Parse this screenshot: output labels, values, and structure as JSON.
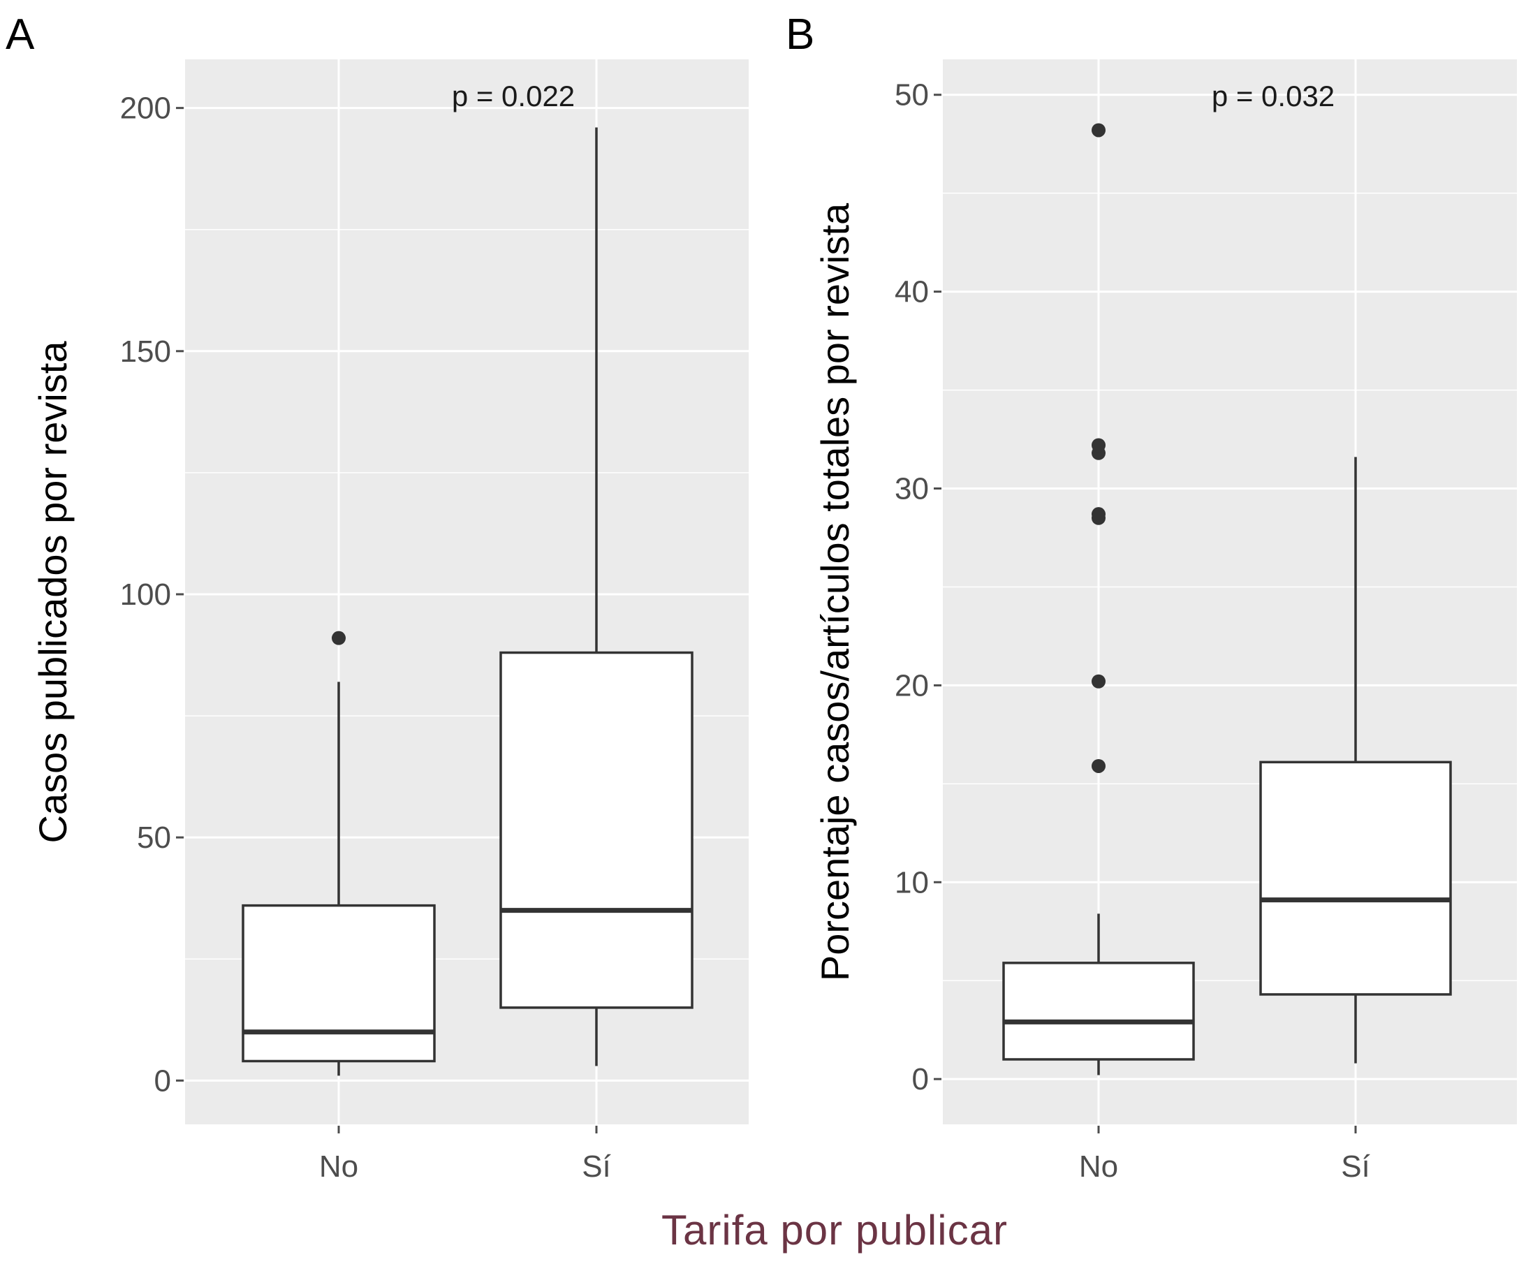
{
  "xlabel": "Tarifa por publicar",
  "colors": {
    "panel_bg": "#ebebeb",
    "grid": "#ffffff",
    "box_stroke": "#333333",
    "text": "#4d4d4d",
    "xlabel": "#6b3444"
  },
  "chart_data": [
    {
      "type": "box",
      "panel_label": "A",
      "ylabel": "Casos publicados por revista",
      "annotation": "p = 0.022",
      "categories": [
        "No",
        "Sí"
      ],
      "ylim": [
        -9,
        210
      ],
      "yticks": [
        0,
        50,
        100,
        150,
        200
      ],
      "ytick_labels": [
        "0",
        "50",
        "100",
        "150",
        "200"
      ],
      "boxes": [
        {
          "category": "No",
          "whisker_low": 1,
          "q1": 4,
          "median": 10,
          "q3": 36,
          "whisker_high": 82,
          "outliers": [
            91
          ]
        },
        {
          "category": "Sí",
          "whisker_low": 3,
          "q1": 15,
          "median": 35,
          "q3": 88,
          "whisker_high": 196,
          "outliers": []
        }
      ],
      "grid": true
    },
    {
      "type": "box",
      "panel_label": "B",
      "ylabel": "Porcentaje casos/artículos totales por revista",
      "annotation": "p = 0.032",
      "categories": [
        "No",
        "Sí"
      ],
      "ylim": [
        -2.3,
        51.8
      ],
      "yticks": [
        0,
        10,
        20,
        30,
        40,
        50
      ],
      "ytick_labels": [
        "0",
        "10",
        "20",
        "30",
        "40",
        "50"
      ],
      "boxes": [
        {
          "category": "No",
          "whisker_low": 0.2,
          "q1": 1.0,
          "median": 2.9,
          "q3": 5.9,
          "whisker_high": 8.4,
          "outliers": [
            15.9,
            20.2,
            28.5,
            28.7,
            31.8,
            32.2,
            48.2
          ]
        },
        {
          "category": "Sí",
          "whisker_low": 0.8,
          "q1": 4.3,
          "median": 9.1,
          "q3": 16.1,
          "whisker_high": 31.6,
          "outliers": []
        }
      ],
      "grid": true
    }
  ]
}
